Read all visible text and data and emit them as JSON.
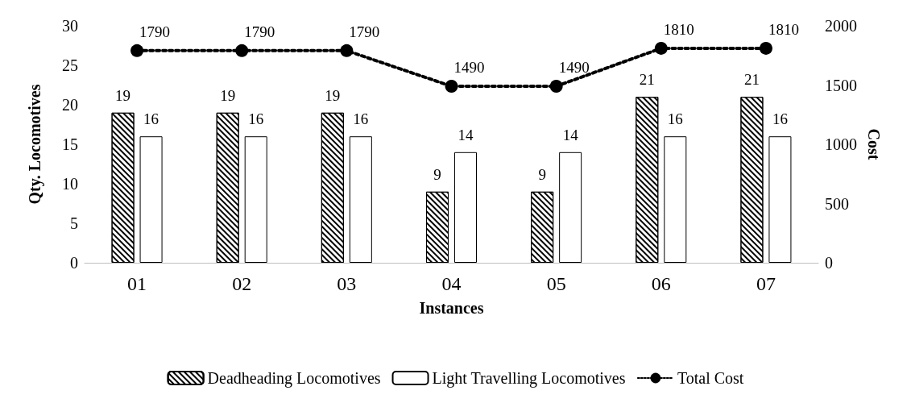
{
  "chart_data": {
    "type": "bar",
    "categories": [
      "01",
      "02",
      "03",
      "04",
      "05",
      "06",
      "07"
    ],
    "xlabel": "Instances",
    "ylabel": "Qty. Locomotives",
    "y2label": "Cost",
    "series": [
      {
        "name": "Deadheading Locomotives",
        "color": "#000000",
        "values": [
          19,
          19,
          19,
          9,
          9,
          21,
          21
        ]
      },
      {
        "name": "Light Travelling Locomotives",
        "color": "#ffffff",
        "values": [
          16,
          16,
          16,
          14,
          14,
          16,
          16
        ]
      },
      {
        "name": "Total Cost",
        "type": "line",
        "axis": "y2",
        "color": "#000000",
        "marker": "circle",
        "line_style": "dotted",
        "values": [
          1790,
          1790,
          1790,
          1490,
          1490,
          1810,
          1810
        ]
      }
    ],
    "ylim": [
      0,
      30
    ],
    "yticks": [
      0,
      5,
      10,
      15,
      20,
      25,
      30
    ],
    "y2lim": [
      0,
      2000
    ],
    "y2ticks": [
      0,
      500,
      1000,
      1500,
      2000
    ],
    "data_labels": true,
    "legend": "bottom"
  }
}
